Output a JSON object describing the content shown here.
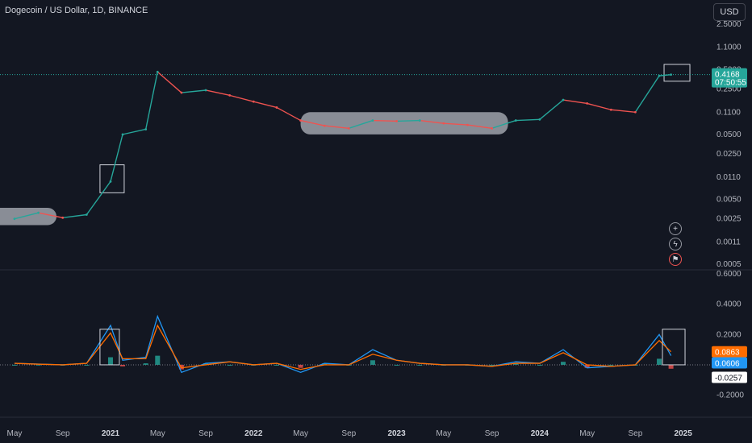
{
  "header": {
    "title": "Dogecoin / US Dollar, 1D, BINANCE",
    "currency": "USD"
  },
  "colors": {
    "background": "#131722",
    "up": "#26a69a",
    "down": "#ef5350",
    "macd": "#2196f3",
    "signal": "#ff6d00",
    "price_tag": "#26a69a"
  },
  "price_axis": {
    "scale": "log",
    "ticks": [
      "2.5000",
      "1.1000",
      "0.5000",
      "0.2500",
      "0.1100",
      "0.0500",
      "0.0250",
      "0.0110",
      "0.0050",
      "0.0025",
      "0.0011",
      "0.0005"
    ]
  },
  "osc_axis": {
    "ticks": [
      "0.6000",
      "0.4000",
      "0.2000",
      "-0.2000"
    ]
  },
  "time_axis": {
    "ticks": [
      {
        "label": "May",
        "bold": false
      },
      {
        "label": "Sep",
        "bold": false
      },
      {
        "label": "2021",
        "bold": true
      },
      {
        "label": "May",
        "bold": false
      },
      {
        "label": "Sep",
        "bold": false
      },
      {
        "label": "2022",
        "bold": true
      },
      {
        "label": "May",
        "bold": false
      },
      {
        "label": "Sep",
        "bold": false
      },
      {
        "label": "2023",
        "bold": true
      },
      {
        "label": "May",
        "bold": false
      },
      {
        "label": "Sep",
        "bold": false
      },
      {
        "label": "2024",
        "bold": true
      },
      {
        "label": "May",
        "bold": false
      },
      {
        "label": "Sep",
        "bold": false
      },
      {
        "label": "2025",
        "bold": true
      }
    ]
  },
  "tags": {
    "price": "0.4168",
    "countdown": "07:50:55",
    "signal": "0.0863",
    "macd": "0.0606",
    "hist": "-0.0257"
  },
  "side_icons": [
    "plus-icon",
    "lightning-icon",
    "flag-icon"
  ],
  "chart_data": {
    "type": "line",
    "title": "Dogecoin / US Dollar, 1D, BINANCE",
    "yscale": "log",
    "ylim": [
      0.0005,
      2.5
    ],
    "x": [
      "2020-05",
      "2020-07",
      "2020-09",
      "2020-11",
      "2021-01",
      "2021-02",
      "2021-04",
      "2021-05",
      "2021-07",
      "2021-09",
      "2021-11",
      "2022-01",
      "2022-03",
      "2022-05",
      "2022-07",
      "2022-09",
      "2022-11",
      "2023-01",
      "2023-03",
      "2023-05",
      "2023-07",
      "2023-09",
      "2023-11",
      "2024-01",
      "2024-03",
      "2024-05",
      "2024-07",
      "2024-09",
      "2024-11",
      "2024-12"
    ],
    "series": [
      {
        "values": [
          0.0025,
          0.0031,
          0.0026,
          0.0029,
          0.0094,
          0.05,
          0.06,
          0.46,
          0.22,
          0.24,
          0.2,
          0.16,
          0.13,
          0.082,
          0.068,
          0.062,
          0.082,
          0.08,
          0.082,
          0.074,
          0.07,
          0.062,
          0.082,
          0.085,
          0.17,
          0.15,
          0.12,
          0.11,
          0.4,
          0.4168
        ]
      }
    ],
    "oscillator": {
      "ylim": [
        -0.25,
        0.6
      ],
      "series": [
        {
          "name": "MACD",
          "values": [
            0.01,
            0.005,
            0.0,
            0.01,
            0.26,
            0.03,
            0.05,
            0.32,
            -0.05,
            0.01,
            0.02,
            0.0,
            0.01,
            -0.05,
            0.01,
            0.0,
            0.1,
            0.03,
            0.01,
            0.0,
            0.0,
            -0.01,
            0.02,
            0.01,
            0.1,
            -0.02,
            -0.01,
            0.0,
            0.2,
            0.0606
          ]
        },
        {
          "name": "Signal",
          "values": [
            0.01,
            0.004,
            0.0,
            0.01,
            0.21,
            0.04,
            0.04,
            0.26,
            -0.02,
            0.0,
            0.02,
            0.0,
            0.01,
            -0.03,
            0.0,
            0.0,
            0.07,
            0.03,
            0.01,
            0.0,
            0.0,
            -0.01,
            0.01,
            0.01,
            0.08,
            0.0,
            -0.01,
            0.0,
            0.16,
            0.0863
          ]
        },
        {
          "name": "Histogram",
          "values": [
            0.0,
            0.001,
            0.0,
            0.0,
            0.05,
            -0.01,
            0.01,
            0.06,
            -0.03,
            0.01,
            0.0,
            0.0,
            0.0,
            -0.02,
            0.01,
            0.0,
            0.03,
            0.0,
            0.0,
            0.0,
            0.0,
            0.0,
            0.01,
            0.0,
            0.02,
            -0.02,
            0.0,
            0.0,
            0.04,
            -0.0257
          ]
        }
      ]
    }
  }
}
